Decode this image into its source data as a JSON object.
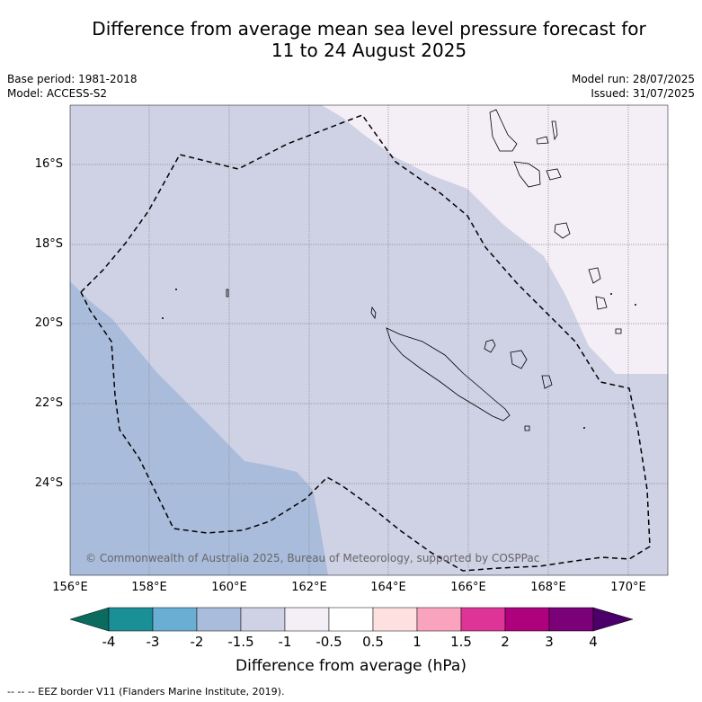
{
  "title_line1": "Difference from average mean sea level pressure forecast for",
  "title_line2": "11 to 24 August 2025",
  "meta_left": {
    "base_period": "Base period: 1981-2018",
    "model": "Model: ACCESS-S2"
  },
  "meta_right": {
    "model_run": "Model run: 28/07/2025",
    "issued": "Issued: 31/07/2025"
  },
  "lat_labels": [
    "16°S",
    "18°S",
    "20°S",
    "22°S",
    "24°S"
  ],
  "lon_labels": [
    "156°E",
    "158°E",
    "160°E",
    "162°E",
    "164°E",
    "166°E",
    "168°E",
    "170°E"
  ],
  "copyright": "© Commonwealth of Australia 2025, Bureau of Meteorology, supported by COSPPac",
  "colorbar": {
    "ticks": [
      "-4",
      "-3",
      "-2",
      "-1.5",
      "-1",
      "-0.5",
      "0.5",
      "1",
      "1.5",
      "2",
      "3",
      "4"
    ],
    "colors": [
      "#1a9096",
      "#6aaed3",
      "#a9bcdb",
      "#cfd1e5",
      "#f4eef6",
      "#ffffff",
      "#fde0df",
      "#f9a3be",
      "#de3497",
      "#ad017e",
      "#7a0177"
    ],
    "low_color": "#0b6b5f",
    "high_color": "#4a0068",
    "title": "Difference from average (hPa)"
  },
  "footnote": "--  --  -- EEZ border V11 (Flanders Marine Institute, 2019)."
}
